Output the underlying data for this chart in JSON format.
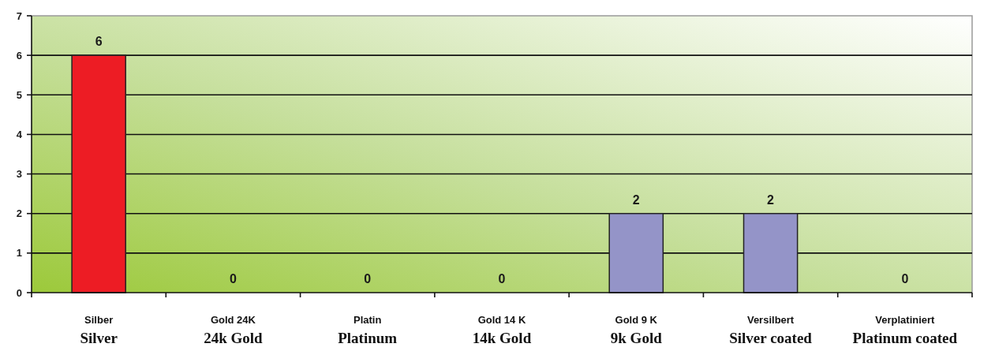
{
  "chart_data": {
    "type": "bar",
    "categories": [
      "Silber\nSilver",
      "Gold 24K\n24k Gold",
      "Platin\nPlatinum",
      "Gold 14 K\n14k Gold",
      "Gold 9 K\n9k Gold",
      "Versilbert\nSilver coated",
      "Verplatiniert\nPlatinum coated"
    ],
    "values": [
      6,
      0,
      0,
      0,
      2,
      2,
      0
    ],
    "colors": [
      "#ed1c24",
      "#9494c8",
      "#9494c8",
      "#9494c8",
      "#9494c8",
      "#9494c8",
      "#9494c8"
    ],
    "ylim": [
      0,
      7
    ],
    "yticks": [
      0,
      1,
      2,
      3,
      4,
      5,
      6,
      7
    ],
    "grid": "y",
    "data_labels": true
  }
}
